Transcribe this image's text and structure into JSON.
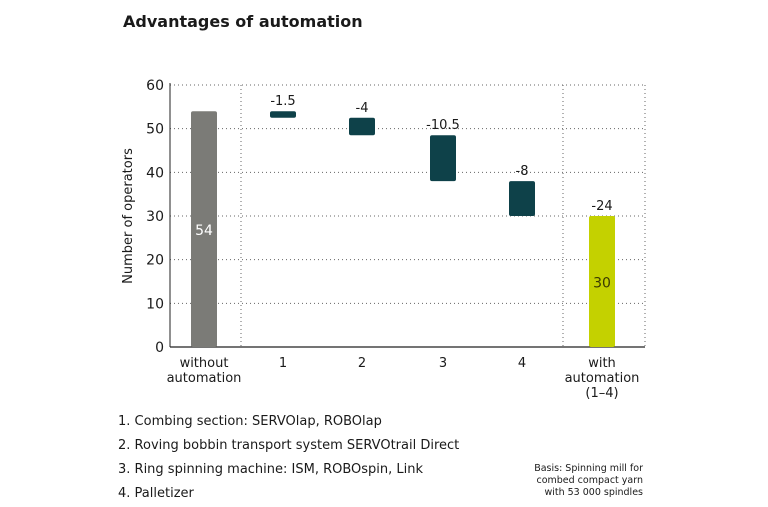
{
  "chart_data": {
    "type": "bar",
    "subtype": "waterfall",
    "title": "Advantages of automation",
    "ylabel": "Number of operators",
    "ylim": [
      0,
      60
    ],
    "yticks": [
      0,
      10,
      20,
      30,
      40,
      50,
      60
    ],
    "grid": true,
    "categories": [
      "without automation",
      "1",
      "2",
      "3",
      "4",
      "with automation (1–4)"
    ],
    "category_lines": [
      [
        "without",
        "automation"
      ],
      [
        "1"
      ],
      [
        "2"
      ],
      [
        "3"
      ],
      [
        "4"
      ],
      [
        "with",
        "automation",
        "(1–4)"
      ]
    ],
    "bars": [
      {
        "category": "without automation",
        "kind": "total",
        "start": 0,
        "end": 54,
        "label": "54",
        "color": "#7b7b77"
      },
      {
        "category": "1",
        "kind": "delta",
        "start": 54,
        "end": 52.5,
        "label": "-1.5",
        "color": "#0e4149"
      },
      {
        "category": "2",
        "kind": "delta",
        "start": 52.5,
        "end": 48.5,
        "label": "-4",
        "color": "#0e4149"
      },
      {
        "category": "3",
        "kind": "delta",
        "start": 48.5,
        "end": 38,
        "label": "-10.5",
        "color": "#0e4149"
      },
      {
        "category": "4",
        "kind": "delta",
        "start": 38,
        "end": 30,
        "label": "-8",
        "color": "#0e4149"
      },
      {
        "category": "with automation (1–4)",
        "kind": "total",
        "start": 0,
        "end": 30,
        "label": "-24",
        "inner_label": "30",
        "color": "#c4d100"
      }
    ]
  },
  "legend": {
    "items": [
      "1. Combing section: SERVOlap, ROBOlap",
      "2. Roving bobbin transport system SERVOtrail Direct",
      "3. Ring spinning machine: ISM, ROBOspin, Link",
      "4. Palletizer"
    ]
  },
  "note": {
    "lines": [
      "Basis: Spinning mill for",
      "combed compact yarn",
      "with 53 000 spindles"
    ]
  }
}
